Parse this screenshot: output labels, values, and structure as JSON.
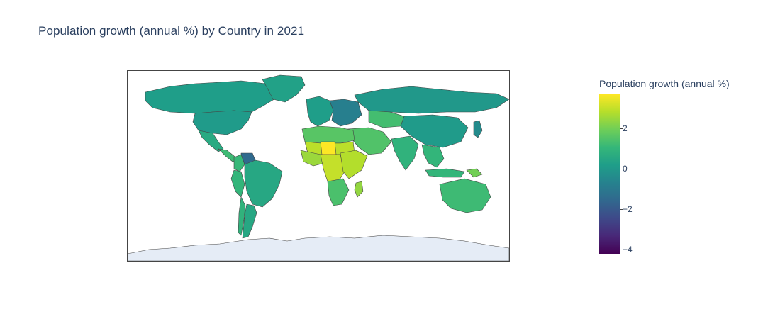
{
  "title": "Population growth (annual %) by Country in 2021",
  "colorbar": {
    "title": "Population growth (annual %)",
    "ticks": [
      "2",
      "0",
      "−2",
      "−4"
    ],
    "tick_values": [
      2,
      0,
      -2,
      -4
    ],
    "range": [
      -4.2,
      3.7
    ],
    "colorscale": [
      "#440154",
      "#482878",
      "#3e4989",
      "#31688e",
      "#26828e",
      "#1f9e89",
      "#35b779",
      "#6ece58",
      "#b5de2b",
      "#fde725"
    ]
  },
  "map": {
    "projection": "equirectangular",
    "land_no_data_color": "#e5ecf6",
    "border_color": "#444444"
  },
  "regions": [
    {
      "name": "Canada",
      "value": 0.2
    },
    {
      "name": "United States",
      "value": 0.1
    },
    {
      "name": "Greenland",
      "value": 0.3
    },
    {
      "name": "Mexico",
      "value": 0.6
    },
    {
      "name": "Central America",
      "value": 1.2
    },
    {
      "name": "Venezuela",
      "value": -1.5
    },
    {
      "name": "Colombia",
      "value": 1.1
    },
    {
      "name": "Brazil",
      "value": 0.5
    },
    {
      "name": "Peru",
      "value": 1.0
    },
    {
      "name": "Argentina",
      "value": 0.5
    },
    {
      "name": "Chile",
      "value": 0.9
    },
    {
      "name": "Western Europe",
      "value": 0.2
    },
    {
      "name": "Eastern Europe",
      "value": -0.8
    },
    {
      "name": "Russia",
      "value": 0.0
    },
    {
      "name": "Kazakhstan",
      "value": 1.3
    },
    {
      "name": "China",
      "value": 0.1
    },
    {
      "name": "India",
      "value": 0.9
    },
    {
      "name": "Middle East",
      "value": 1.5
    },
    {
      "name": "North Africa",
      "value": 1.6
    },
    {
      "name": "Sahel",
      "value": 2.9
    },
    {
      "name": "Niger",
      "value": 3.7
    },
    {
      "name": "West Africa",
      "value": 2.5
    },
    {
      "name": "Central Africa",
      "value": 3.0
    },
    {
      "name": "East Africa",
      "value": 2.8
    },
    {
      "name": "Southern Africa",
      "value": 1.4
    },
    {
      "name": "Southeast Asia",
      "value": 1.0
    },
    {
      "name": "Indonesia",
      "value": 1.0
    },
    {
      "name": "Japan",
      "value": -0.4
    },
    {
      "name": "Australia",
      "value": 1.2
    },
    {
      "name": "Papua New Guinea",
      "value": 2.0
    },
    {
      "name": "Madagascar",
      "value": 2.4
    }
  ]
}
